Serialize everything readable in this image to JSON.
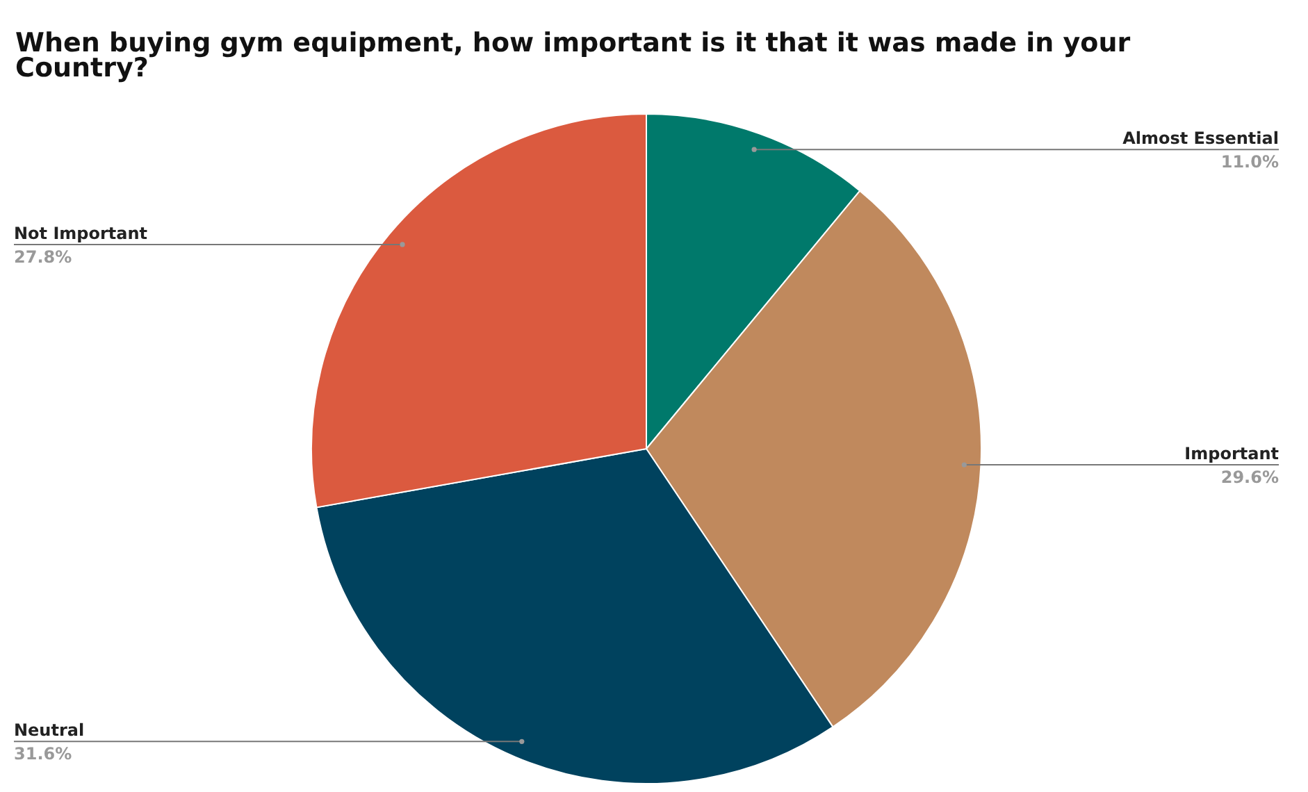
{
  "chart_data": {
    "type": "pie",
    "title": "When buying gym equipment, how important is it that it was made in your Country?",
    "categories": [
      "Almost Essential",
      "Important",
      "Neutral",
      "Not Important"
    ],
    "values": [
      11.0,
      29.6,
      31.6,
      27.8
    ],
    "value_labels": [
      "11.0%",
      "29.6%",
      "31.6%",
      "27.8%"
    ],
    "colors": [
      "#00796b",
      "#c0895d",
      "#00425e",
      "#db5a3f"
    ]
  }
}
